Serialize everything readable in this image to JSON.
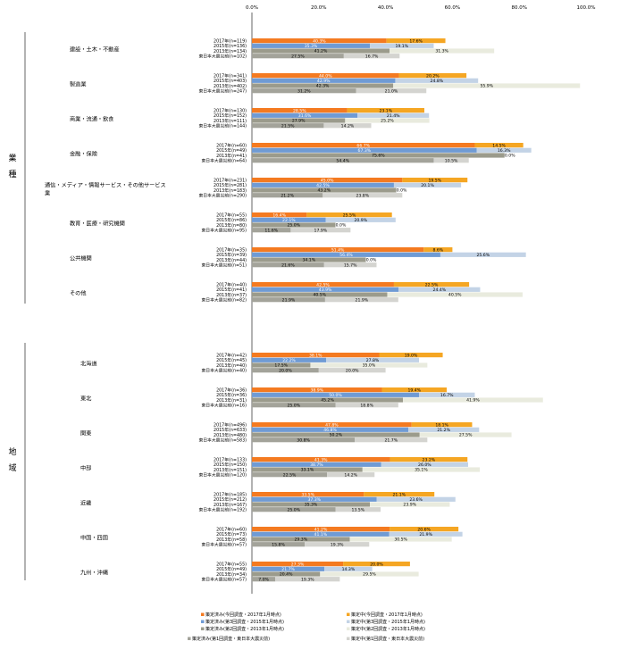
{
  "chart_data": {
    "type": "bar",
    "orientation": "horizontal",
    "stacked": true,
    "xlim": [
      0,
      100
    ],
    "x_ticks": [
      "0.0%",
      "20.0%",
      "40.0%",
      "60.0%",
      "80.0%",
      "100.0%"
    ],
    "grid": false,
    "legend_position": "bottom",
    "colors": {
      "decided": [
        "#f47a20",
        "#6f9bd4",
        "#9b9b8c",
        "#a3a39a"
      ],
      "pending": [
        "#f5a623",
        "#c3d3e6",
        "#e9ebde",
        "#d4d4d0"
      ]
    },
    "sections": [
      {
        "label": "業種",
        "groups": [
          {
            "name": "建設・土木・不動産",
            "rows": [
              {
                "label": "2017年(n=119)",
                "decided": 40.3,
                "pending": 17.6
              },
              {
                "label": "2015年(n=136)",
                "decided": 35.3,
                "pending": 19.1
              },
              {
                "label": "2013年(n=134)",
                "decided": 41.2,
                "pending": 31.3
              },
              {
                "label": "東日本大震災前(n=102)",
                "decided": 27.5,
                "pending": 16.7
              }
            ]
          },
          {
            "name": "製造業",
            "rows": [
              {
                "label": "2017年(n=341)",
                "decided": 44.0,
                "pending": 20.2
              },
              {
                "label": "2015年(n=403)",
                "decided": 42.9,
                "pending": 24.8
              },
              {
                "label": "2013年(n=402)",
                "decided": 42.3,
                "pending": 55.9
              },
              {
                "label": "東日本大震災前(n=247)",
                "decided": 31.2,
                "pending": 21.0
              }
            ]
          },
          {
            "name": "商業・流通・飲食",
            "rows": [
              {
                "label": "2017年(n=130)",
                "decided": 28.5,
                "pending": 23.1
              },
              {
                "label": "2015年(n=152)",
                "decided": 31.6,
                "pending": 21.4
              },
              {
                "label": "2013年(n=111)",
                "decided": 27.9,
                "pending": 25.2
              },
              {
                "label": "東日本大震災前(n=144)",
                "decided": 21.5,
                "pending": 14.2
              }
            ]
          },
          {
            "name": "金融・保険",
            "rows": [
              {
                "label": "2017年(n=60)",
                "decided": 66.7,
                "pending": 14.5
              },
              {
                "label": "2015年(n=49)",
                "decided": 67.3,
                "pending": 16.3
              },
              {
                "label": "2013年(n=41)",
                "decided": 75.6,
                "pending": 0.0
              },
              {
                "label": "東日本大震災前(n=64)",
                "decided": 54.4,
                "pending": 10.5
              }
            ]
          },
          {
            "name": "通信・メディア・情報サービス・その他サービス業",
            "rows": [
              {
                "label": "2017年(n=231)",
                "decided": 45.0,
                "pending": 19.5
              },
              {
                "label": "2015年(n=281)",
                "decided": 42.5,
                "pending": 20.1
              },
              {
                "label": "2013年(n=183)",
                "decided": 43.2,
                "pending": 0.0
              },
              {
                "label": "東日本大震災前(n=290)",
                "decided": 21.2,
                "pending": 23.8
              }
            ]
          },
          {
            "name": "教育・医療・研究機関",
            "rows": [
              {
                "label": "2017年(n=55)",
                "decided": 16.4,
                "pending": 25.5
              },
              {
                "label": "2015年(n=86)",
                "decided": 22.1,
                "pending": 20.9
              },
              {
                "label": "2013年(n=80)",
                "decided": 25.0,
                "pending": 0.0
              },
              {
                "label": "東日本大震災前(n=95)",
                "decided": 11.6,
                "pending": 17.9
              }
            ]
          },
          {
            "name": "公共機関",
            "rows": [
              {
                "label": "2017年(n=35)",
                "decided": 51.4,
                "pending": 8.6
              },
              {
                "label": "2015年(n=39)",
                "decided": 56.4,
                "pending": 25.6
              },
              {
                "label": "2013年(n=44)",
                "decided": 34.1,
                "pending": 0.0
              },
              {
                "label": "東日本大震災前(n=51)",
                "decided": 21.6,
                "pending": 15.7
              }
            ]
          },
          {
            "name": "その他",
            "rows": [
              {
                "label": "2017年(n=40)",
                "decided": 42.5,
                "pending": 22.5
              },
              {
                "label": "2015年(n=41)",
                "decided": 43.9,
                "pending": 24.4
              },
              {
                "label": "2013年(n=37)",
                "decided": 40.5,
                "pending": 40.5
              },
              {
                "label": "東日本大震災前(n=82)",
                "decided": 21.9,
                "pending": 21.9
              }
            ]
          }
        ]
      },
      {
        "label": "地域",
        "groups": [
          {
            "name": "北海道",
            "rows": [
              {
                "label": "2017年(n=42)",
                "decided": 38.1,
                "pending": 19.0
              },
              {
                "label": "2015年(n=45)",
                "decided": 22.2,
                "pending": 27.8
              },
              {
                "label": "2013年(n=40)",
                "decided": 17.5,
                "pending": 35.0
              },
              {
                "label": "東日本大震災前(n=40)",
                "decided": 20.0,
                "pending": 20.0
              }
            ]
          },
          {
            "name": "東北",
            "rows": [
              {
                "label": "2017年(n=36)",
                "decided": 38.9,
                "pending": 19.4
              },
              {
                "label": "2015年(n=36)",
                "decided": 50.0,
                "pending": 16.7
              },
              {
                "label": "2013年(n=31)",
                "decided": 45.2,
                "pending": 41.9
              },
              {
                "label": "東日本大震災前(n=16)",
                "decided": 25.0,
                "pending": 18.8
              }
            ]
          },
          {
            "name": "関東",
            "rows": [
              {
                "label": "2017年(n=496)",
                "decided": 47.8,
                "pending": 18.1
              },
              {
                "label": "2015年(n=633)",
                "decided": 46.8,
                "pending": 21.2
              },
              {
                "label": "2013年(n=480)",
                "decided": 50.2,
                "pending": 27.5
              },
              {
                "label": "東日本大震災前(n=583)",
                "decided": 30.8,
                "pending": 21.7
              }
            ]
          },
          {
            "name": "中部",
            "rows": [
              {
                "label": "2017年(n=133)",
                "decided": 41.3,
                "pending": 23.2
              },
              {
                "label": "2015年(n=150)",
                "decided": 38.7,
                "pending": 26.0
              },
              {
                "label": "2013年(n=151)",
                "decided": 33.1,
                "pending": 35.1
              },
              {
                "label": "東日本大震災前(n=120)",
                "decided": 22.5,
                "pending": 14.2
              }
            ]
          },
          {
            "name": "近畿",
            "rows": [
              {
                "label": "2017年(n=185)",
                "decided": 33.5,
                "pending": 21.1
              },
              {
                "label": "2015年(n=212)",
                "decided": 37.3,
                "pending": 23.6
              },
              {
                "label": "2013年(n=167)",
                "decided": 35.3,
                "pending": 23.9
              },
              {
                "label": "東日本大震災前(n=192)",
                "decided": 25.0,
                "pending": 13.5
              }
            ]
          },
          {
            "name": "中国・四国",
            "rows": [
              {
                "label": "2017年(n=60)",
                "decided": 41.2,
                "pending": 20.6
              },
              {
                "label": "2015年(n=73)",
                "decided": 41.1,
                "pending": 21.9
              },
              {
                "label": "2013年(n=58)",
                "decided": 29.3,
                "pending": 30.5
              },
              {
                "label": "東日本大震災前(n=57)",
                "decided": 15.8,
                "pending": 19.3
              }
            ]
          },
          {
            "name": "九州・沖縄",
            "rows": [
              {
                "label": "2017年(n=55)",
                "decided": 27.3,
                "pending": 20.0
              },
              {
                "label": "2015年(n=49)",
                "decided": 21.7,
                "pending": 14.3
              },
              {
                "label": "2013年(n=34)",
                "decided": 20.4,
                "pending": 29.5
              },
              {
                "label": "東日本大震災前(n=57)",
                "decided": 7.0,
                "pending": 19.3
              }
            ]
          }
        ]
      }
    ],
    "legend": [
      {
        "name": "策定済み(今回調査・2017年1月時点)",
        "color": "#f47a20"
      },
      {
        "name": "策定中(今回調査・2017年1月時点)",
        "color": "#f5a623"
      },
      {
        "name": "策定済み(第3回調査・2015年1月時点)",
        "color": "#6f9bd4"
      },
      {
        "name": "策定中(第3回調査・2015年1月時点)",
        "color": "#c3d3e6"
      },
      {
        "name": "策定済み(第2回調査・2013年1月時点)",
        "color": "#9b9b8c"
      },
      {
        "name": "策定中(第2回調査・2013年1月時点)",
        "color": "#e9ebde"
      },
      {
        "name": "策定済み(第1回調査・東日本大震災前)",
        "color": "#a3a39a"
      },
      {
        "name": "策定中(第1回調査・東日本大震災前)",
        "color": "#d4d4d0"
      }
    ]
  }
}
